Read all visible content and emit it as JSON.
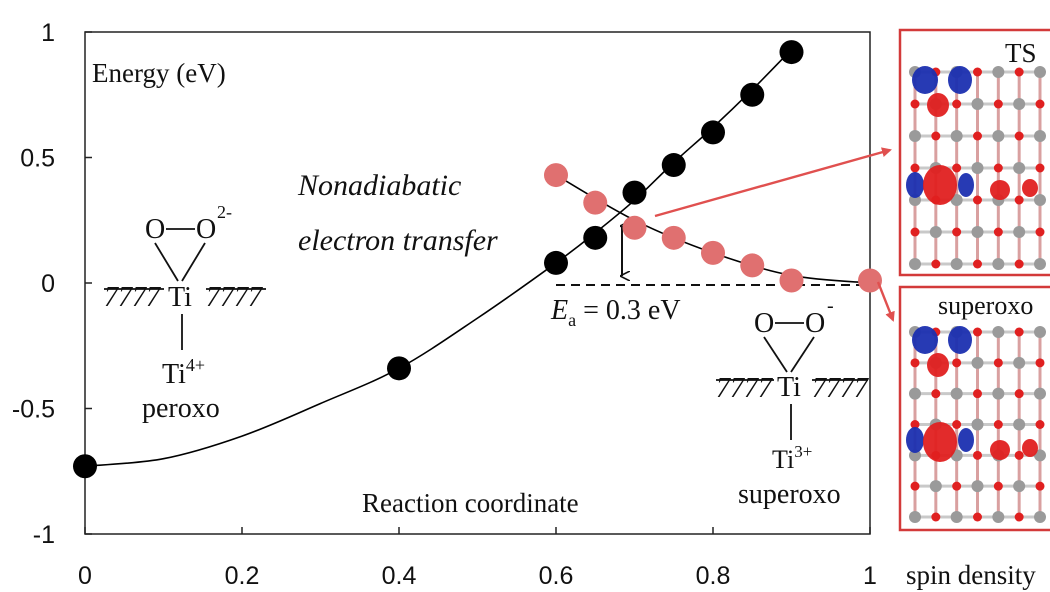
{
  "chart_data": {
    "type": "scatter",
    "ylabel": "Energy (eV)",
    "xlabel": "Reaction coordinate",
    "xlim": [
      0,
      1
    ],
    "ylim": [
      -1,
      1
    ],
    "x_ticks": [
      "0",
      "0.2",
      "0.4",
      "0.6",
      "0.8",
      "1"
    ],
    "y_ticks": [
      "1",
      "0.5",
      "0",
      "-0.5",
      "-1"
    ],
    "grid": false,
    "series": [
      {
        "color": "#000000",
        "x": [
          0.0,
          0.4,
          0.6,
          0.65,
          0.7,
          0.75,
          0.8,
          0.85,
          0.9
        ],
        "y": [
          -0.73,
          -0.34,
          0.08,
          0.18,
          0.36,
          0.47,
          0.6,
          0.75,
          0.92
        ]
      },
      {
        "color": "#e07070",
        "x": [
          0.6,
          0.65,
          0.7,
          0.75,
          0.8,
          0.85,
          0.9,
          1.0
        ],
        "y": [
          0.43,
          0.32,
          0.22,
          0.18,
          0.12,
          0.07,
          0.01,
          0.01
        ]
      }
    ],
    "fit_curves": [
      {
        "color": "#000000",
        "x": [
          0.0,
          0.1,
          0.2,
          0.3,
          0.4,
          0.5,
          0.6,
          0.65,
          0.7,
          0.75,
          0.8,
          0.85,
          0.9
        ],
        "y": [
          -0.73,
          -0.7,
          -0.61,
          -0.48,
          -0.34,
          -0.14,
          0.08,
          0.2,
          0.33,
          0.48,
          0.62,
          0.77,
          0.93
        ]
      },
      {
        "color": "#000000",
        "x": [
          0.6,
          0.7,
          0.8,
          0.9,
          1.0
        ],
        "y": [
          0.43,
          0.25,
          0.12,
          0.03,
          0.0
        ]
      }
    ],
    "annotations": {
      "nonadiabatic": [
        "Nonadiabatic",
        "electron transfer"
      ],
      "ea_symbol": "E",
      "ea_subscript": "a",
      "ea_value": " = 0.3 eV",
      "ea_range": [
        0.0,
        0.3
      ],
      "peroxo": {
        "o1": "O",
        "o2": "O",
        "charge": "2-",
        "ti": "Ti",
        "hatch": "7777",
        "ti_below": "Ti",
        "ti_below_sup": "4+",
        "name": "peroxo"
      },
      "superoxo": {
        "o1": "O",
        "o2": "O",
        "charge": "-",
        "ti": "Ti",
        "hatch": "7777",
        "ti_below": "Ti",
        "ti_below_sup": "3+",
        "name": "superoxo"
      }
    },
    "panels": {
      "ts_label": "TS",
      "superoxo_label": "superoxo",
      "caption": "spin density",
      "border_color": "#d33a3a",
      "arrow_color": "#e0504f"
    }
  }
}
